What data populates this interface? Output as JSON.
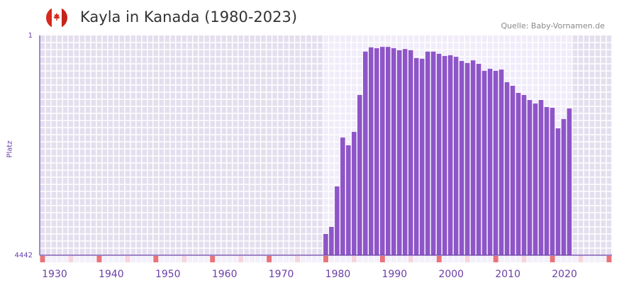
{
  "header": {
    "title": "Kayla in Kanada (1980-2023)",
    "source": "Quelle: Baby-Vornamen.de",
    "flag_icon": "canada-flag-icon"
  },
  "chart_data": {
    "type": "bar",
    "title": "Kayla in Kanada (1980-2023)",
    "ylabel": "Platz",
    "xlabel": "",
    "y_scale": "sqrt-rank, inverted",
    "ylim": [
      4442,
      1
    ],
    "y_ticks": [
      "1",
      "4442"
    ],
    "xlim": [
      1928,
      2028
    ],
    "x_ticks": [
      "1930",
      "1940",
      "1950",
      "1960",
      "1970",
      "1980",
      "1990",
      "2000",
      "2010",
      "2020"
    ],
    "x": [
      1978,
      1979,
      1980,
      1981,
      1982,
      1983,
      1984,
      1985,
      1986,
      1987,
      1988,
      1989,
      1990,
      1991,
      1992,
      1993,
      1994,
      1995,
      1996,
      1997,
      1998,
      1999,
      2000,
      2001,
      2002,
      2003,
      2004,
      2005,
      2006,
      2007,
      2008,
      2009,
      2010,
      2011,
      2012,
      2013,
      2014,
      2015,
      2016,
      2017,
      2018,
      2019,
      2020,
      2021
    ],
    "values": [
      3624,
      3371,
      2097,
      959,
      1111,
      856,
      327,
      25,
      14,
      16,
      13,
      13,
      16,
      21,
      18,
      21,
      48,
      51,
      25,
      25,
      32,
      40,
      37,
      43,
      61,
      71,
      58,
      75,
      116,
      103,
      116,
      108,
      202,
      234,
      304,
      327,
      384,
      427,
      384,
      472,
      482,
      794,
      644,
      491
    ],
    "grid": true,
    "colors": {
      "bar": "#8e55c8",
      "axis": "#6a3fa8",
      "decade_marker": "#e8737a",
      "half_decade_marker": "#f5d5de"
    }
  }
}
